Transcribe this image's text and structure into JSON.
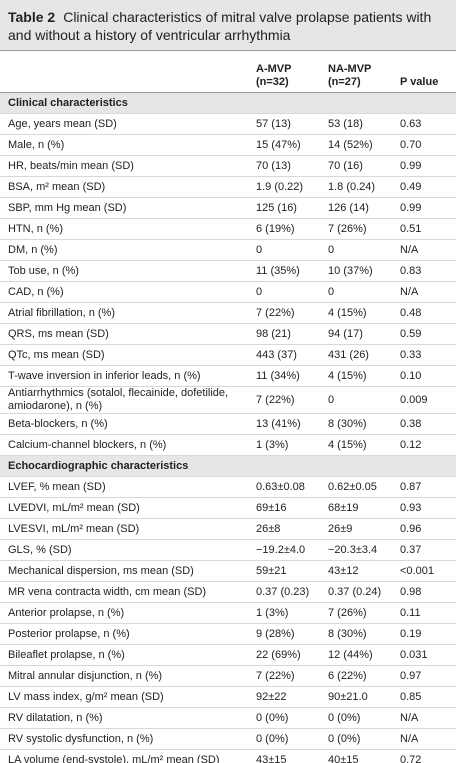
{
  "title": {
    "label": "Table 2",
    "text": "Clinical characteristics of mitral valve prolapse patients with and without a history of ventricular arrhythmia"
  },
  "table": {
    "header": [
      [
        "A-MVP",
        "(n=32)"
      ],
      [
        "NA-MVP",
        "(n=27)"
      ],
      [
        "P value"
      ]
    ],
    "sections": [
      {
        "title": "Clinical characteristics",
        "rows": [
          [
            "Age, years mean (SD)",
            "57 (13)",
            "53 (18)",
            "0.63"
          ],
          [
            "Male, n (%)",
            "15 (47%)",
            "14 (52%)",
            "0.70"
          ],
          [
            "HR, beats/min mean (SD)",
            "70 (13)",
            "70 (16)",
            "0.99"
          ],
          [
            "BSA, m² mean (SD)",
            "1.9 (0.22)",
            "1.8 (0.24)",
            "0.49"
          ],
          [
            "SBP, mm Hg mean (SD)",
            "125 (16)",
            "126 (14)",
            "0.99"
          ],
          [
            "HTN, n (%)",
            "6 (19%)",
            "7 (26%)",
            "0.51"
          ],
          [
            "DM, n (%)",
            "0",
            "0",
            "N/A"
          ],
          [
            "Tob use, n (%)",
            "11 (35%)",
            "10 (37%)",
            "0.83"
          ],
          [
            "CAD, n (%)",
            "0",
            "0",
            "N/A"
          ],
          [
            "Atrial fibrillation, n (%)",
            "7 (22%)",
            "4 (15%)",
            "0.48"
          ],
          [
            "QRS, ms mean (SD)",
            "98 (21)",
            "94 (17)",
            "0.59"
          ],
          [
            "QTc, ms mean (SD)",
            "443 (37)",
            "431 (26)",
            "0.33"
          ],
          [
            "T-wave inversion in inferior leads, n (%)",
            "11 (34%)",
            "4 (15%)",
            "0.10"
          ],
          [
            "Antiarrhythmics (sotalol, flecainide, dofetilide, amiodarone), n (%)",
            "7 (22%)",
            "0",
            "0.009"
          ],
          [
            "Beta-blockers, n (%)",
            "13 (41%)",
            "8 (30%)",
            "0.38"
          ],
          [
            "Calcium-channel blockers, n (%)",
            "1 (3%)",
            "4 (15%)",
            "0.12"
          ]
        ]
      },
      {
        "title": "Echocardiographic characteristics",
        "rows": [
          [
            "LVEF, % mean (SD)",
            "0.63±0.08",
            "0.62±0.05",
            "0.87"
          ],
          [
            "LVEDVI, mL/m² mean (SD)",
            "69±16",
            "68±19",
            "0.93"
          ],
          [
            "LVESVI, mL/m² mean (SD)",
            "26±8",
            "26±9",
            "0.96"
          ],
          [
            "GLS, % (SD)",
            "−19.2±4.0",
            "−20.3±3.4",
            "0.37"
          ],
          [
            "Mechanical dispersion, ms mean (SD)",
            "59±21",
            "43±12",
            "<0.001"
          ],
          [
            "MR vena contracta width, cm mean (SD)",
            "0.37 (0.23)",
            "0.37 (0.24)",
            "0.98"
          ],
          [
            "Anterior prolapse, n (%)",
            "1 (3%)",
            "7 (26%)",
            "0.11"
          ],
          [
            "Posterior prolapse, n (%)",
            "9 (28%)",
            "8 (30%)",
            "0.19"
          ],
          [
            "Bileaflet prolapse, n (%)",
            "22 (69%)",
            "12 (44%)",
            "0.031"
          ],
          [
            "Mitral annular disjunction, n (%)",
            "7 (22%)",
            "6 (22%)",
            "0.97"
          ],
          [
            "LV mass index, g/m² mean (SD)",
            "92±22",
            "90±21.0",
            "0.85"
          ],
          [
            "RV dilatation, n (%)",
            "0 (0%)",
            "0 (0%)",
            "N/A"
          ],
          [
            "RV systolic dysfunction, n (%)",
            "0 (0%)",
            "0 (0%)",
            "N/A"
          ],
          [
            "LA volume (end-systole), mL/m² mean (SD)",
            "43±15",
            "40±15",
            "0.72"
          ]
        ]
      }
    ]
  }
}
